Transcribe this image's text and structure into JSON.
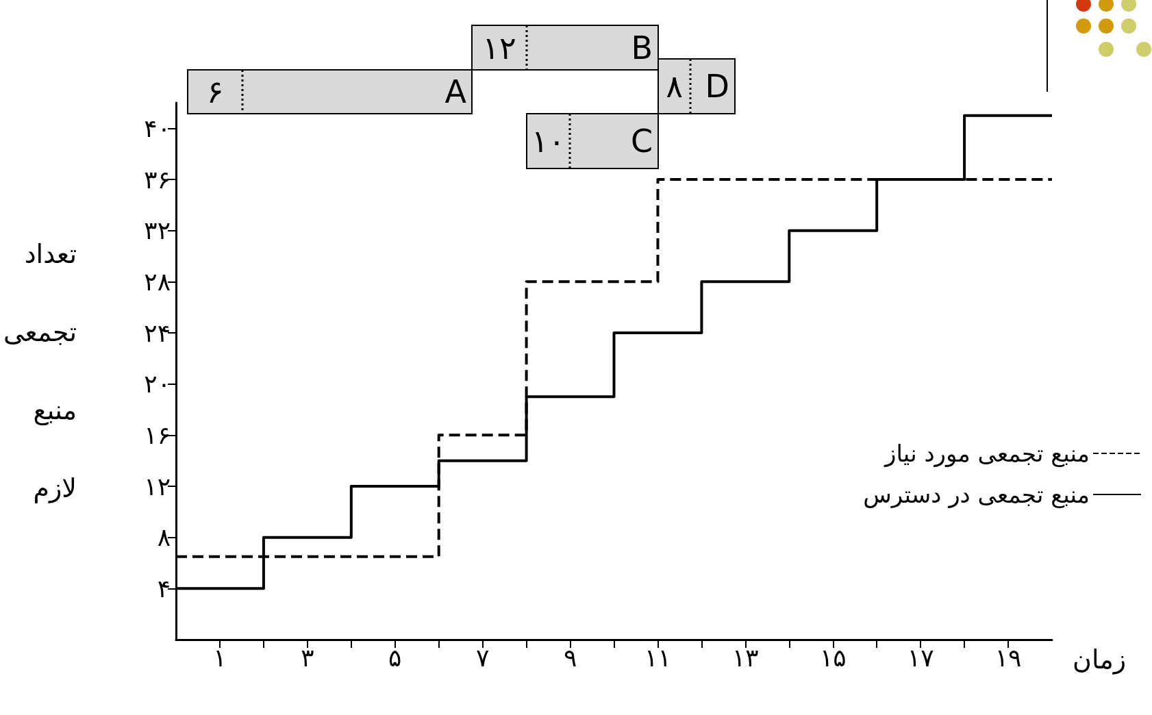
{
  "chart_data": [
    {
      "type": "other",
      "annotations": [
        "۶",
        "A",
        "۱۲",
        "B",
        "۱۰",
        "C",
        "۸",
        "D"
      ]
    },
    {
      "type": "step",
      "xlabel": "زمان",
      "ylabel": "تعداد تجمعی منبع لازم",
      "series": [
        {
          "name": "منبع تجمعی مورد نیاز",
          "color": "#000000",
          "line_style": "dashed",
          "x": [
            0,
            6,
            8,
            11,
            20
          ],
          "values": [
            6.5,
            16,
            28,
            36,
            36
          ]
        },
        {
          "name": "منبع تجمعی در دسترس",
          "color": "#000000",
          "line_style": "solid",
          "x": [
            0,
            2,
            4,
            6,
            8,
            10,
            12,
            14,
            16,
            18,
            20
          ],
          "values": [
            4,
            8,
            12,
            14,
            19,
            24,
            28,
            32,
            36,
            41,
            41
          ]
        }
      ],
      "xlim": [
        0,
        20
      ],
      "xticks": [
        {
          "value": 1,
          "label": "۱"
        },
        {
          "value": 2,
          "label": null
        },
        {
          "value": 3,
          "label": "۳"
        },
        {
          "value": 4,
          "label": null
        },
        {
          "value": 5,
          "label": "۵"
        },
        {
          "value": 6,
          "label": null
        },
        {
          "value": 7,
          "label": "۷"
        },
        {
          "value": 8,
          "label": null
        },
        {
          "value": 9,
          "label": "۹"
        },
        {
          "value": 10,
          "label": null
        },
        {
          "value": 11,
          "label": "۱۱"
        },
        {
          "value": 12,
          "label": null
        },
        {
          "value": 13,
          "label": "۱۳"
        },
        {
          "value": 14,
          "label": null
        },
        {
          "value": 15,
          "label": "۱۵"
        },
        {
          "value": 16,
          "label": null
        },
        {
          "value": 17,
          "label": "۱۷"
        },
        {
          "value": 18,
          "label": null
        },
        {
          "value": 19,
          "label": "۱۹"
        }
      ],
      "ylim": [
        0,
        42
      ],
      "yticks": [
        {
          "value": 4,
          "label": "۴"
        },
        {
          "value": 8,
          "label": "۸"
        },
        {
          "value": 12,
          "label": "۱۲"
        },
        {
          "value": 16,
          "label": "۱۶"
        },
        {
          "value": 20,
          "label": "۲۰"
        },
        {
          "value": 24,
          "label": "۲۴"
        },
        {
          "value": 28,
          "label": "۲۸"
        },
        {
          "value": 32,
          "label": "۳۲"
        },
        {
          "value": 36,
          "label": "۳۶"
        },
        {
          "value": 40,
          "label": "۴۰"
        }
      ],
      "grid": false,
      "marker": "none",
      "legend": "bottom right"
    }
  ]
}
